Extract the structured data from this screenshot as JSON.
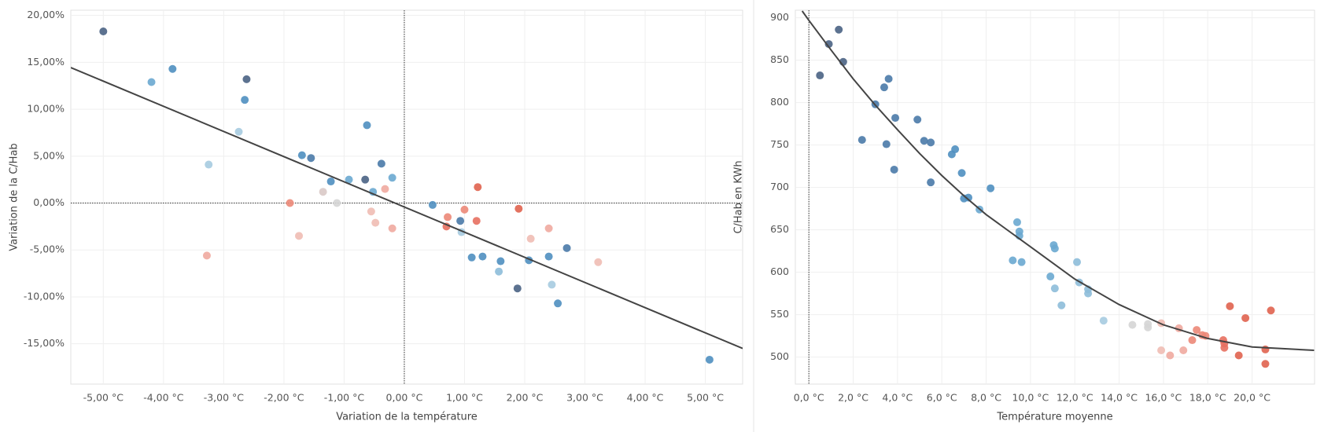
{
  "chart_data": [
    {
      "type": "scatter",
      "x_label": "Variation de la température",
      "y_label": "Variation de la C/Hab",
      "xlim": [
        -5.54,
        5.62
      ],
      "ylim": [
        -19.3,
        20.56
      ],
      "xticks": [
        {
          "value": -5,
          "label": "-5,00 °C"
        },
        {
          "value": -4,
          "label": "-4,00 °C"
        },
        {
          "value": -3,
          "label": "-3,00 °C"
        },
        {
          "value": -2,
          "label": "-2,00 °C"
        },
        {
          "value": -1,
          "label": "-1,00 °C"
        },
        {
          "value": 0,
          "label": "0,00 °C"
        },
        {
          "value": 1,
          "label": "1,00 °C"
        },
        {
          "value": 2,
          "label": "2,00 °C"
        },
        {
          "value": 3,
          "label": "3,00 °C"
        },
        {
          "value": 4,
          "label": "4,00 °C"
        },
        {
          "value": 5,
          "label": "5,00 °C"
        }
      ],
      "yticks": [
        {
          "value": -15,
          "label": "-15,00%"
        },
        {
          "value": -10,
          "label": "-10,00%"
        },
        {
          "value": -5,
          "label": "-5,00%"
        },
        {
          "value": 0,
          "label": "0,00%"
        },
        {
          "value": 5,
          "label": "5,00%"
        },
        {
          "value": 10,
          "label": "10,00%"
        },
        {
          "value": 15,
          "label": "15,00%"
        },
        {
          "value": 20,
          "label": "20,00%"
        }
      ],
      "grid": true,
      "zero_lines": [
        "x",
        "y"
      ],
      "x": [
        -5.0,
        -4.2,
        -3.85,
        -2.62,
        -2.65,
        -2.75,
        -3.25,
        -3.28,
        -1.7,
        -1.55,
        -1.22,
        -0.92,
        -0.65,
        -0.62,
        -0.38,
        -0.52,
        -0.2,
        -1.35,
        -1.12,
        -1.9,
        -1.75,
        -0.55,
        -0.48,
        -0.32,
        -0.2,
        0.47,
        0.7,
        0.72,
        0.93,
        0.95,
        1.0,
        1.2,
        1.22,
        1.12,
        1.3,
        1.57,
        1.6,
        1.88,
        1.9,
        2.07,
        2.1,
        2.4,
        2.4,
        2.45,
        2.55,
        2.7,
        3.22,
        5.07
      ],
      "y": [
        18.3,
        12.9,
        14.3,
        13.2,
        11.0,
        7.6,
        4.1,
        -5.6,
        5.1,
        4.8,
        2.3,
        2.5,
        2.5,
        8.3,
        4.2,
        1.2,
        2.7,
        1.2,
        0.0,
        0.0,
        -3.5,
        -0.9,
        -2.1,
        1.5,
        -2.7,
        -0.2,
        -2.5,
        -1.5,
        -1.9,
        -3.1,
        -0.7,
        -1.9,
        1.7,
        -5.8,
        -5.7,
        -7.3,
        -6.2,
        -9.1,
        -0.6,
        -6.1,
        -3.8,
        -2.7,
        -5.7,
        -8.7,
        -10.7,
        -4.8,
        -6.3,
        -16.7
      ],
      "colors": [
        "#4a6384",
        "#6aa8d0",
        "#4f8fc0",
        "#4a6384",
        "#4f8fc0",
        "#a6cbe0",
        "#a6cbe0",
        "#f0aaa0",
        "#4f8fc0",
        "#4a7aa8",
        "#4f8fc0",
        "#6aa8d0",
        "#4a6384",
        "#4f8fc0",
        "#4a7aa8",
        "#6aa8d0",
        "#6aa8d0",
        "#d9c9c6",
        "#d5d5d5",
        "#ec8878",
        "#f0bcb4",
        "#f0bcb4",
        "#f0bcb4",
        "#f0aaa0",
        "#f0aaa0",
        "#4f8fc0",
        "#e77060",
        "#ec8878",
        "#4a7aa8",
        "#a6cbe0",
        "#ec8878",
        "#e77060",
        "#e0634f",
        "#4f8fc0",
        "#4f8fc0",
        "#8dbcd9",
        "#4f8fc0",
        "#4a6384",
        "#e0634f",
        "#4f8fc0",
        "#f0bcb4",
        "#f0aaa0",
        "#4f8fc0",
        "#a6cbe0",
        "#4f8fc0",
        "#4a7aa8",
        "#f0bcb4",
        "#4f8fc0"
      ],
      "trend_line": {
        "x": [
          -5.54,
          5.62
        ],
        "y": [
          14.45,
          -15.5
        ]
      }
    },
    {
      "type": "scatter",
      "x_label": "Température moyenne",
      "y_label": "C/Hab en KWh",
      "xlim": [
        -0.61,
        22.82
      ],
      "ylim": [
        468.2,
        908.9
      ],
      "xticks": [
        {
          "value": 0,
          "label": "0,0 °C"
        },
        {
          "value": 2,
          "label": "2,0 °C"
        },
        {
          "value": 4,
          "label": "4,0 °C"
        },
        {
          "value": 6,
          "label": "6,0 °C"
        },
        {
          "value": 8,
          "label": "8,0 °C"
        },
        {
          "value": 10,
          "label": "10,0 °C"
        },
        {
          "value": 12,
          "label": "12,0 °C"
        },
        {
          "value": 14,
          "label": "14,0 °C"
        },
        {
          "value": 16,
          "label": "16,0 °C"
        },
        {
          "value": 18,
          "label": "18,0 °C"
        },
        {
          "value": 20,
          "label": "20,0 °C"
        }
      ],
      "yticks": [
        500,
        550,
        600,
        650,
        700,
        750,
        800,
        850,
        900
      ],
      "grid": true,
      "zero_lines": [
        "x"
      ],
      "x": [
        0.5,
        0.9,
        1.35,
        1.55,
        2.4,
        3.0,
        3.4,
        3.5,
        3.6,
        3.85,
        3.9,
        4.9,
        5.2,
        5.5,
        5.5,
        6.45,
        6.6,
        6.9,
        7.0,
        7.2,
        7.7,
        8.2,
        9.2,
        9.4,
        9.5,
        9.5,
        9.6,
        10.9,
        11.05,
        11.1,
        11.1,
        11.4,
        12.1,
        12.2,
        12.6,
        12.6,
        13.3,
        14.6,
        15.3,
        15.3,
        15.9,
        15.9,
        16.3,
        16.7,
        16.9,
        17.3,
        17.5,
        17.75,
        17.9,
        18.7,
        18.75,
        18.75,
        19.0,
        19.4,
        19.7,
        20.6,
        20.6,
        20.85
      ],
      "y": [
        832,
        869,
        886,
        848,
        756,
        798,
        818,
        751,
        828,
        721,
        782,
        780,
        755,
        753,
        706,
        739,
        745,
        717,
        687,
        688,
        674,
        699,
        614,
        659,
        648,
        643,
        612,
        595,
        632,
        628,
        581,
        561,
        612,
        588,
        575,
        580,
        543,
        538,
        535,
        539,
        540,
        508,
        502,
        534,
        508,
        520,
        532,
        526,
        525,
        520,
        511,
        516,
        560,
        502,
        546,
        509,
        492,
        555
      ],
      "colors": [
        "#4a6384",
        "#4a6384",
        "#4a6384",
        "#4a6384",
        "#4a7aa8",
        "#4a7aa8",
        "#4a7aa8",
        "#4a7aa8",
        "#4a7aa8",
        "#4a7aa8",
        "#4a7aa8",
        "#4a7aa8",
        "#4a7aa8",
        "#4a7aa8",
        "#4a7aa8",
        "#4f8fc0",
        "#4f8fc0",
        "#4f8fc0",
        "#4f8fc0",
        "#4f8fc0",
        "#6aa8d0",
        "#4f8fc0",
        "#6aa8d0",
        "#6aa8d0",
        "#6aa8d0",
        "#6aa8d0",
        "#6aa8d0",
        "#6aa8d0",
        "#6aa8d0",
        "#6aa8d0",
        "#8dbcd9",
        "#8dbcd9",
        "#8dbcd9",
        "#8dbcd9",
        "#8dbcd9",
        "#8dbcd9",
        "#a6cbe0",
        "#d5d5d5",
        "#d5d5d5",
        "#d5d5d5",
        "#f0bcb4",
        "#f0bcb4",
        "#f0aaa0",
        "#f0aaa0",
        "#f0aaa0",
        "#ec8878",
        "#ec8878",
        "#ec8878",
        "#ec8878",
        "#e77060",
        "#e77060",
        "#e77060",
        "#e0634f",
        "#e0634f",
        "#e0634f",
        "#e0634f",
        "#e0634f",
        "#e0634f"
      ],
      "trend_line": {
        "x": [
          -0.3,
          0,
          1,
          2,
          3,
          4,
          5,
          6,
          7,
          8,
          10,
          12,
          14,
          16,
          18,
          20,
          22.8
        ],
        "y": [
          908,
          897,
          862,
          828,
          797,
          768,
          740,
          714,
          690,
          668,
          630,
          592,
          562,
          538,
          522,
          512,
          508
        ]
      }
    }
  ]
}
